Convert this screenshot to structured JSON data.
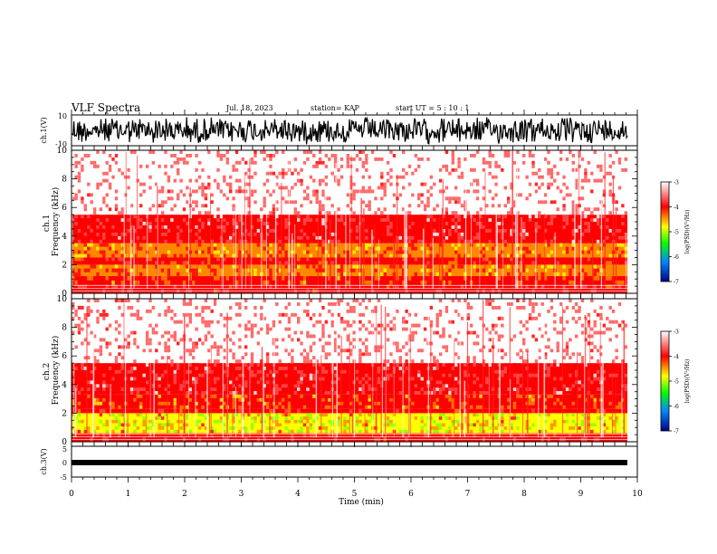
{
  "header": {
    "title": "VLF Spectra",
    "date": "Jul. 18, 2023",
    "station": "station= KAP",
    "start": "start  UT =   5 : 10 : 1"
  },
  "chart_data": [
    {
      "type": "line",
      "name": "ch1-waveform",
      "ylabel": "ch.1(V)",
      "ylim": [
        -10,
        10
      ],
      "yticks": [
        "10",
        "-10"
      ],
      "xlim": [
        0,
        10
      ]
    },
    {
      "type": "heatmap",
      "name": "ch1-spectrogram",
      "ylabel": "ch.1 Frequency (kHz)",
      "ylim": [
        0,
        10
      ],
      "yticks": [
        "0",
        "2",
        "4",
        "6",
        "8",
        "10"
      ],
      "xlim": [
        0,
        10
      ],
      "colorbar": {
        "label": "log(PSD)(V²/Hz)",
        "ticks": [
          "-3",
          "-4",
          "-5",
          "-6",
          "-7"
        ],
        "range": [
          -7,
          -3
        ]
      },
      "bands": [
        {
          "from": 0.0,
          "to": 0.6,
          "level": -4.0
        },
        {
          "from": 0.6,
          "to": 1.2,
          "level": -4.4
        },
        {
          "from": 1.2,
          "to": 2.0,
          "level": -4.6
        },
        {
          "from": 2.0,
          "to": 2.5,
          "level": -4.1
        },
        {
          "from": 2.5,
          "to": 3.5,
          "level": -4.6
        },
        {
          "from": 3.5,
          "to": 5.5,
          "level": -3.8
        },
        {
          "from": 5.5,
          "to": 10.0,
          "level": -3.3
        }
      ]
    },
    {
      "type": "heatmap",
      "name": "ch2-spectrogram",
      "ylabel": "ch.2 Frequency (kHz)",
      "ylim": [
        0,
        10
      ],
      "yticks": [
        "0",
        "2",
        "4",
        "6",
        "8",
        "10"
      ],
      "xlim": [
        0,
        10
      ],
      "colorbar": {
        "label": "log(PSD)(V²/Hz)",
        "ticks": [
          "-3",
          "-4",
          "-5",
          "-6",
          "-7"
        ],
        "range": [
          -7,
          -3
        ]
      },
      "bands": [
        {
          "from": 0.0,
          "to": 0.6,
          "level": -4.0
        },
        {
          "from": 0.6,
          "to": 2.0,
          "level": -5.0
        },
        {
          "from": 2.0,
          "to": 2.3,
          "level": -4.1
        },
        {
          "from": 2.3,
          "to": 3.3,
          "level": -4.5
        },
        {
          "from": 3.3,
          "to": 5.5,
          "level": -3.8
        },
        {
          "from": 5.5,
          "to": 10.0,
          "level": -3.3
        }
      ]
    },
    {
      "type": "line",
      "name": "ch3-waveform",
      "ylabel": "ch.3(V)",
      "ylim": [
        -5,
        5
      ],
      "yticks": [
        "5",
        "0",
        "-5"
      ],
      "xlim": [
        0,
        10
      ],
      "xlabel": "Time (min)",
      "xticks": [
        "0",
        "1",
        "2",
        "3",
        "4",
        "5",
        "6",
        "7",
        "8",
        "9",
        "10"
      ],
      "data_end": 9.8
    }
  ],
  "colors": {
    "axis": "#000000",
    "background": "#ffffff",
    "psd_high": "#ff0000",
    "psd_mid": "#ffff00",
    "psd_green": "#00ff00",
    "psd_low": "#0000ff"
  }
}
